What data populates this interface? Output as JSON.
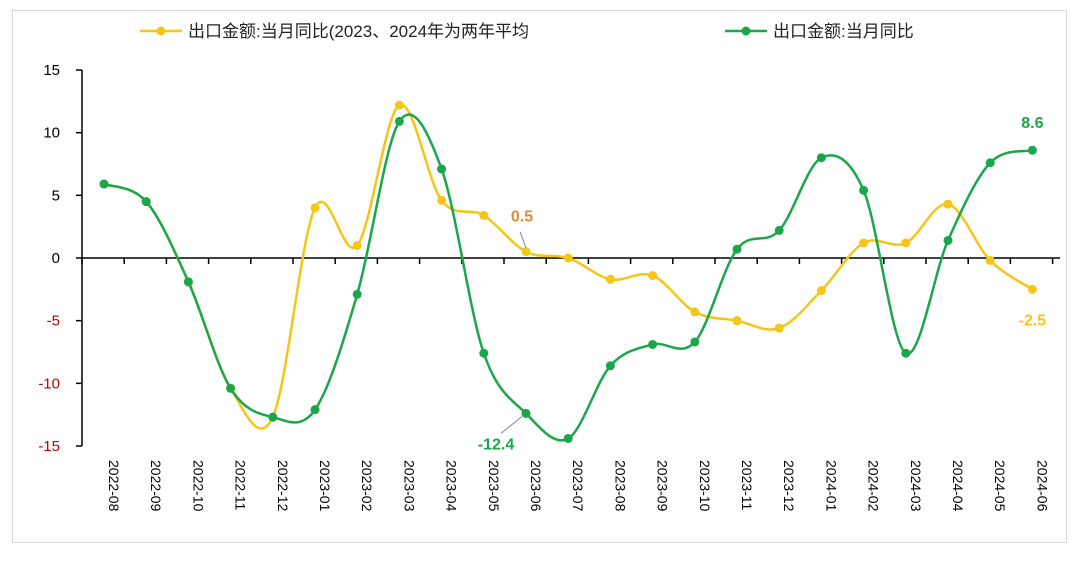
{
  "chart_data": {
    "type": "line",
    "title": "",
    "xlabel": "",
    "ylabel": "",
    "ylim": [
      -15,
      15
    ],
    "yticks": [
      15,
      10,
      5,
      0,
      -5,
      -10,
      -15
    ],
    "grid": false,
    "legend_position": "top",
    "smooth": true,
    "categories": [
      "2022-08",
      "2022-09",
      "2022-10",
      "2022-11",
      "2022-12",
      "2023-01",
      "2023-02",
      "2023-03",
      "2023-04",
      "2023-05",
      "2023-06",
      "2023-07",
      "2023-08",
      "2023-09",
      "2023-10",
      "2023-11",
      "2023-12",
      "2024-01",
      "2024-02",
      "2024-03",
      "2024-04",
      "2024-05",
      "2024-06"
    ],
    "series": [
      {
        "name": "出口金额:当月同比(2023、2024年为两年平均",
        "color": "#f5c518",
        "values": [
          5.9,
          4.5,
          -1.9,
          -10.4,
          -12.7,
          4.0,
          1.0,
          12.2,
          4.6,
          3.4,
          0.5,
          0.0,
          -1.7,
          -1.4,
          -4.3,
          -5.0,
          -5.6,
          -2.6,
          1.2,
          1.2,
          4.3,
          -0.2,
          -2.5
        ]
      },
      {
        "name": "出口金额:当月同比",
        "color": "#1aa64a",
        "values": [
          5.9,
          4.5,
          -1.9,
          -10.4,
          -12.7,
          -12.1,
          -2.9,
          10.9,
          7.1,
          -7.6,
          -12.4,
          -14.4,
          -8.6,
          -6.9,
          -6.7,
          0.7,
          2.2,
          8.0,
          5.4,
          -7.6,
          1.4,
          7.6,
          8.6
        ]
      }
    ],
    "annotations": [
      {
        "text": "0.5",
        "series": 0,
        "category": "2023-06",
        "color": "#e08a3c"
      },
      {
        "text": "-12.4",
        "series": 1,
        "category": "2023-06",
        "color": "#1aa64a"
      },
      {
        "text": "8.6",
        "series": 1,
        "category": "2024-06",
        "color": "#1aa64a"
      },
      {
        "text": "-2.5",
        "series": 0,
        "category": "2024-06",
        "color": "#f5c518"
      }
    ],
    "negative_tick_color": "#c00000"
  }
}
